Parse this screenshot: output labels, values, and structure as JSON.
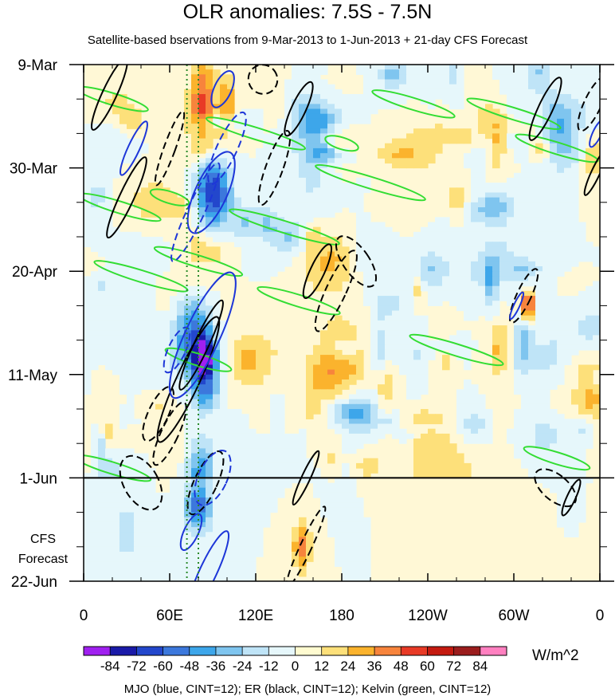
{
  "chart_data": {
    "type": "heatmap",
    "title": "OLR anomalies: 7.5S - 7.5N",
    "subtitle": "Satellite-based bservations from 9-Mar-2013 to 1-Jun-2013 + 21-day CFS Forecast",
    "x_tick_labels": [
      "0",
      "60E",
      "120E",
      "180",
      "120W",
      "60W",
      "0"
    ],
    "x_ticks_deg": [
      0,
      60,
      120,
      180,
      240,
      300,
      360
    ],
    "y_tick_labels": [
      "9-Mar",
      "30-Mar",
      "20-Apr",
      "11-May",
      "1-Jun",
      "22-Jun"
    ],
    "y_ticks_day": [
      0,
      21,
      42,
      63,
      84,
      105
    ],
    "observation_end_label": "1-Jun",
    "forecast_label_lines": [
      "CFS",
      "Forecast"
    ],
    "colorbar": {
      "levels": [
        -84,
        -72,
        -60,
        -48,
        -36,
        -24,
        -12,
        0,
        12,
        24,
        36,
        48,
        60,
        72,
        84
      ],
      "labels": [
        "-84",
        "-72",
        "-60",
        "-48",
        "-36",
        "-24",
        "-12",
        "0",
        "12",
        "24",
        "36",
        "48",
        "60",
        "72",
        "84"
      ],
      "colors": [
        "#a020f0",
        "#1a1aa8",
        "#2347cc",
        "#3c78dc",
        "#3da6ea",
        "#7fc5ef",
        "#bfe4f7",
        "#e6f7fb",
        "#fffbd0",
        "#fde07a",
        "#fbb32d",
        "#f7843c",
        "#e83a26",
        "#c41a10",
        "#9b1d1d",
        "#ff80c0"
      ],
      "units": "W/m^2"
    },
    "overlays": [
      {
        "name": "MJO",
        "color": "#1d36d8"
      },
      {
        "name": "ER",
        "color": "#000000"
      },
      {
        "name": "Kelvin",
        "color": "#33dd33"
      }
    ],
    "footnote": "MJO (blue, CINT=12); ER (black, CINT=12); Kelvin (green, CINT=12)"
  }
}
